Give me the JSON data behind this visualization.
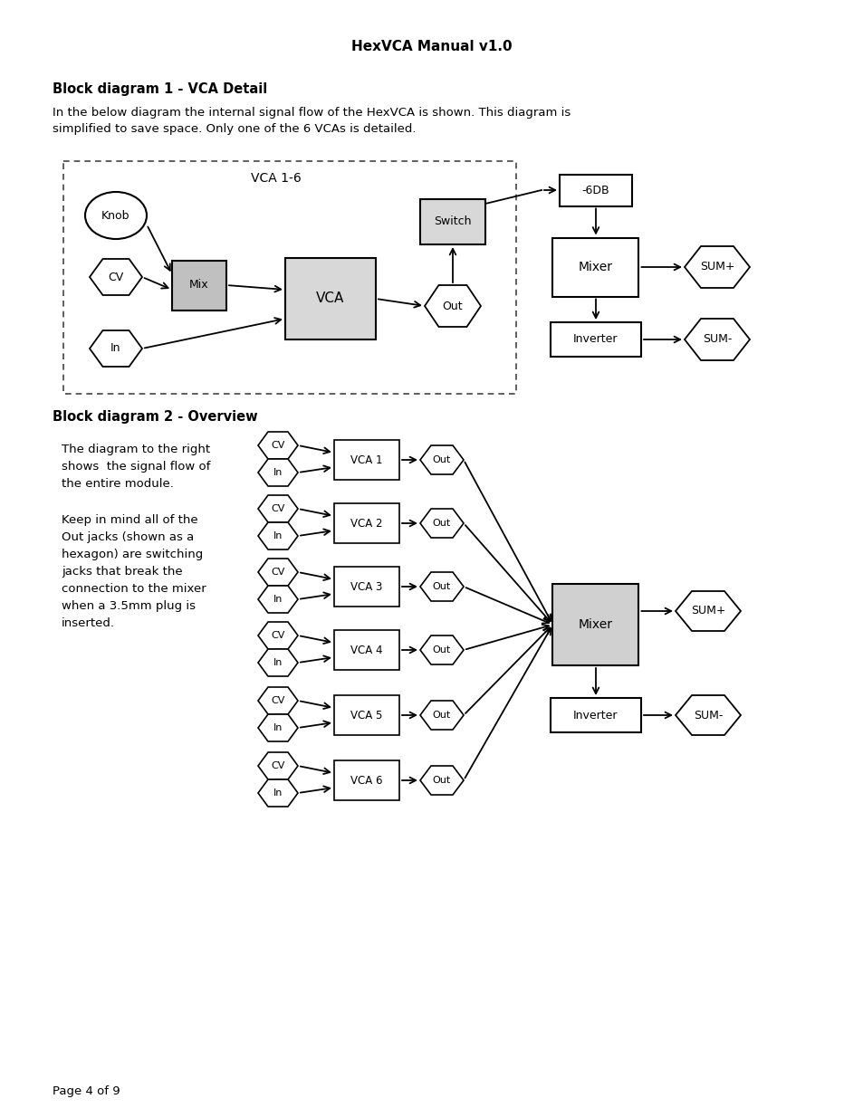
{
  "title": "HexVCA Manual v1.0",
  "bg_color": "#ffffff",
  "section1_title": "Block diagram 1 - VCA Detail",
  "section1_body": "In the below diagram the internal signal flow of the HexVCA is shown. This diagram is\nsimplified to save space. Only one of the 6 VCAs is detailed.",
  "section2_title": "Block diagram 2 - Overview",
  "section2_body1": "The diagram to the right\nshows  the signal flow of\nthe entire module.",
  "section2_body2": "Keep in mind all of the\nOut jacks (shown as a\nhexagon) are switching\njacks that break the\nconnection to the mixer\nwhen a 3.5mm plug is\ninserted.",
  "footer": "Page 4 of 9",
  "vca_labels": [
    "VCA 1",
    "VCA 2",
    "VCA 3",
    "VCA 4",
    "VCA 5",
    "VCA 6"
  ]
}
